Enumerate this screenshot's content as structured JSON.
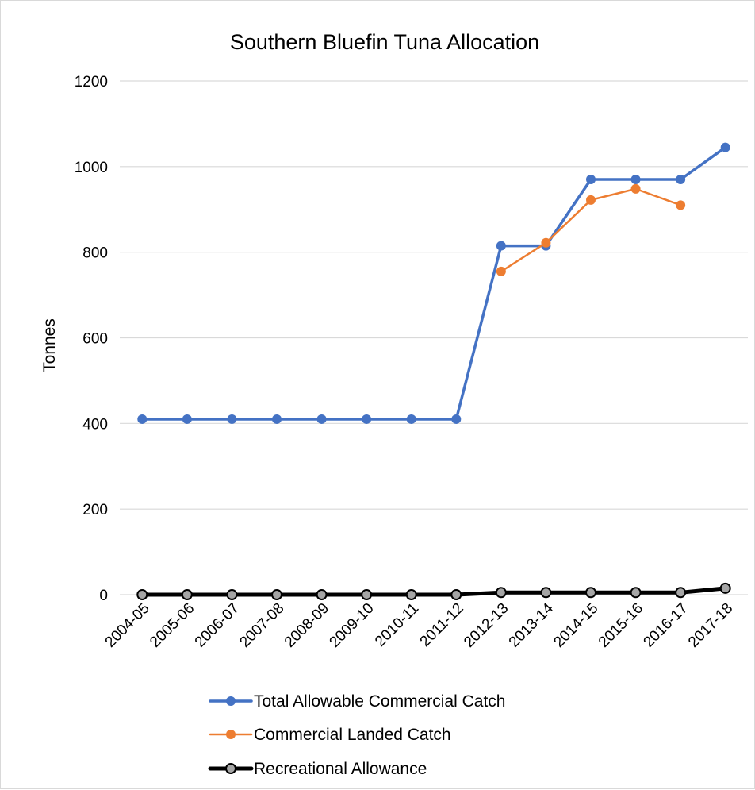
{
  "chart_data": {
    "type": "line",
    "title": "Southern Bluefin Tuna Allocation",
    "xlabel": "",
    "ylabel": "Tonnes",
    "ylim": [
      0,
      1200
    ],
    "yticks": [
      0,
      200,
      400,
      600,
      800,
      1000,
      1200
    ],
    "grid": "horizontal",
    "legend_position": "bottom",
    "categories": [
      "2004-05",
      "2005-06",
      "2006-07",
      "2007-08",
      "2008-09",
      "2009-10",
      "2010-11",
      "2011-12",
      "2012-13",
      "2013-14",
      "2014-15",
      "2015-16",
      "2016-17",
      "2017-18"
    ],
    "series": [
      {
        "name": "Total Allowable Commercial Catch",
        "color": "#4472c4",
        "values": [
          410,
          410,
          410,
          410,
          410,
          410,
          410,
          410,
          815,
          815,
          970,
          970,
          970,
          1045
        ]
      },
      {
        "name": "Commercial Landed Catch",
        "color": "#ed7d31",
        "values": [
          null,
          null,
          null,
          null,
          null,
          null,
          null,
          null,
          755,
          822,
          922,
          948,
          910,
          null
        ]
      },
      {
        "name": "Recreational Allowance",
        "color": "#000000",
        "marker_fill": "#a5a5a5",
        "values": [
          0,
          0,
          0,
          0,
          0,
          0,
          0,
          0,
          5,
          5,
          5,
          5,
          5,
          15
        ]
      }
    ]
  }
}
